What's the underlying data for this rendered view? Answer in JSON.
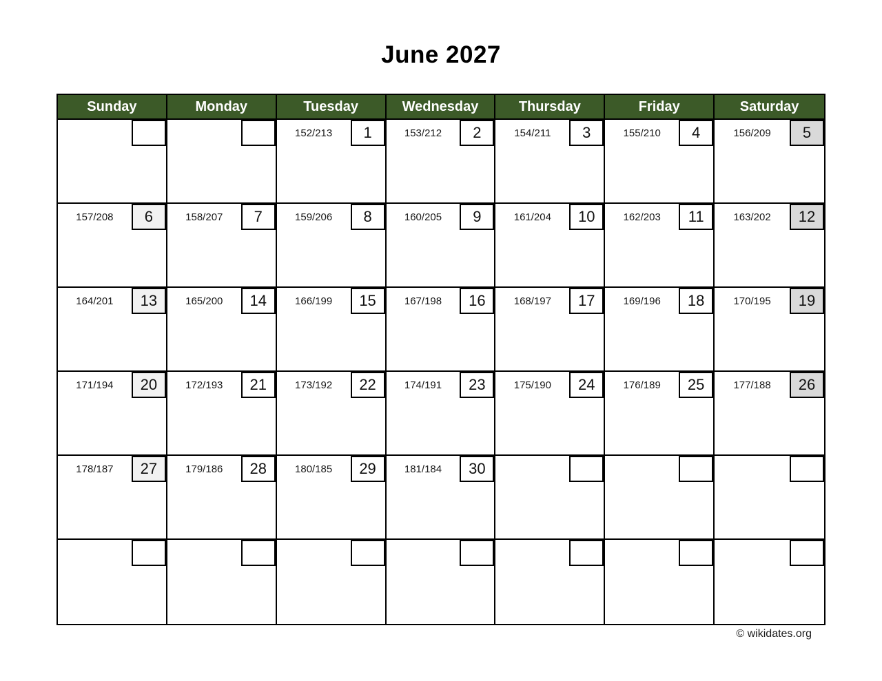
{
  "page": {
    "title": "June 2027",
    "footer": "© wikidates.org"
  },
  "colors": {
    "header_bg": "#3c5a28",
    "header_text": "#ffffff",
    "grid_border": "#000000",
    "sunday_box_bg": "#f2f2f2",
    "saturday_box_bg": "#d9d9d9",
    "empty_box_bg": "#ffffff"
  },
  "weekday_headers": [
    "Sunday",
    "Monday",
    "Tuesday",
    "Wednesday",
    "Thursday",
    "Friday",
    "Saturday"
  ],
  "calendar": {
    "month": "June",
    "year": "2027",
    "weeks": [
      [
        {
          "info": "",
          "day": ""
        },
        {
          "info": "",
          "day": ""
        },
        {
          "info": "152/213",
          "day": "1"
        },
        {
          "info": "153/212",
          "day": "2"
        },
        {
          "info": "154/211",
          "day": "3"
        },
        {
          "info": "155/210",
          "day": "4"
        },
        {
          "info": "156/209",
          "day": "5"
        }
      ],
      [
        {
          "info": "157/208",
          "day": "6"
        },
        {
          "info": "158/207",
          "day": "7"
        },
        {
          "info": "159/206",
          "day": "8"
        },
        {
          "info": "160/205",
          "day": "9"
        },
        {
          "info": "161/204",
          "day": "10"
        },
        {
          "info": "162/203",
          "day": "11"
        },
        {
          "info": "163/202",
          "day": "12"
        }
      ],
      [
        {
          "info": "164/201",
          "day": "13"
        },
        {
          "info": "165/200",
          "day": "14"
        },
        {
          "info": "166/199",
          "day": "15"
        },
        {
          "info": "167/198",
          "day": "16"
        },
        {
          "info": "168/197",
          "day": "17"
        },
        {
          "info": "169/196",
          "day": "18"
        },
        {
          "info": "170/195",
          "day": "19"
        }
      ],
      [
        {
          "info": "171/194",
          "day": "20"
        },
        {
          "info": "172/193",
          "day": "21"
        },
        {
          "info": "173/192",
          "day": "22"
        },
        {
          "info": "174/191",
          "day": "23"
        },
        {
          "info": "175/190",
          "day": "24"
        },
        {
          "info": "176/189",
          "day": "25"
        },
        {
          "info": "177/188",
          "day": "26"
        }
      ],
      [
        {
          "info": "178/187",
          "day": "27"
        },
        {
          "info": "179/186",
          "day": "28"
        },
        {
          "info": "180/185",
          "day": "29"
        },
        {
          "info": "181/184",
          "day": "30"
        },
        {
          "info": "",
          "day": ""
        },
        {
          "info": "",
          "day": ""
        },
        {
          "info": "",
          "day": ""
        }
      ],
      [
        {
          "info": "",
          "day": ""
        },
        {
          "info": "",
          "day": ""
        },
        {
          "info": "",
          "day": ""
        },
        {
          "info": "",
          "day": ""
        },
        {
          "info": "",
          "day": ""
        },
        {
          "info": "",
          "day": ""
        },
        {
          "info": "",
          "day": ""
        }
      ]
    ]
  }
}
